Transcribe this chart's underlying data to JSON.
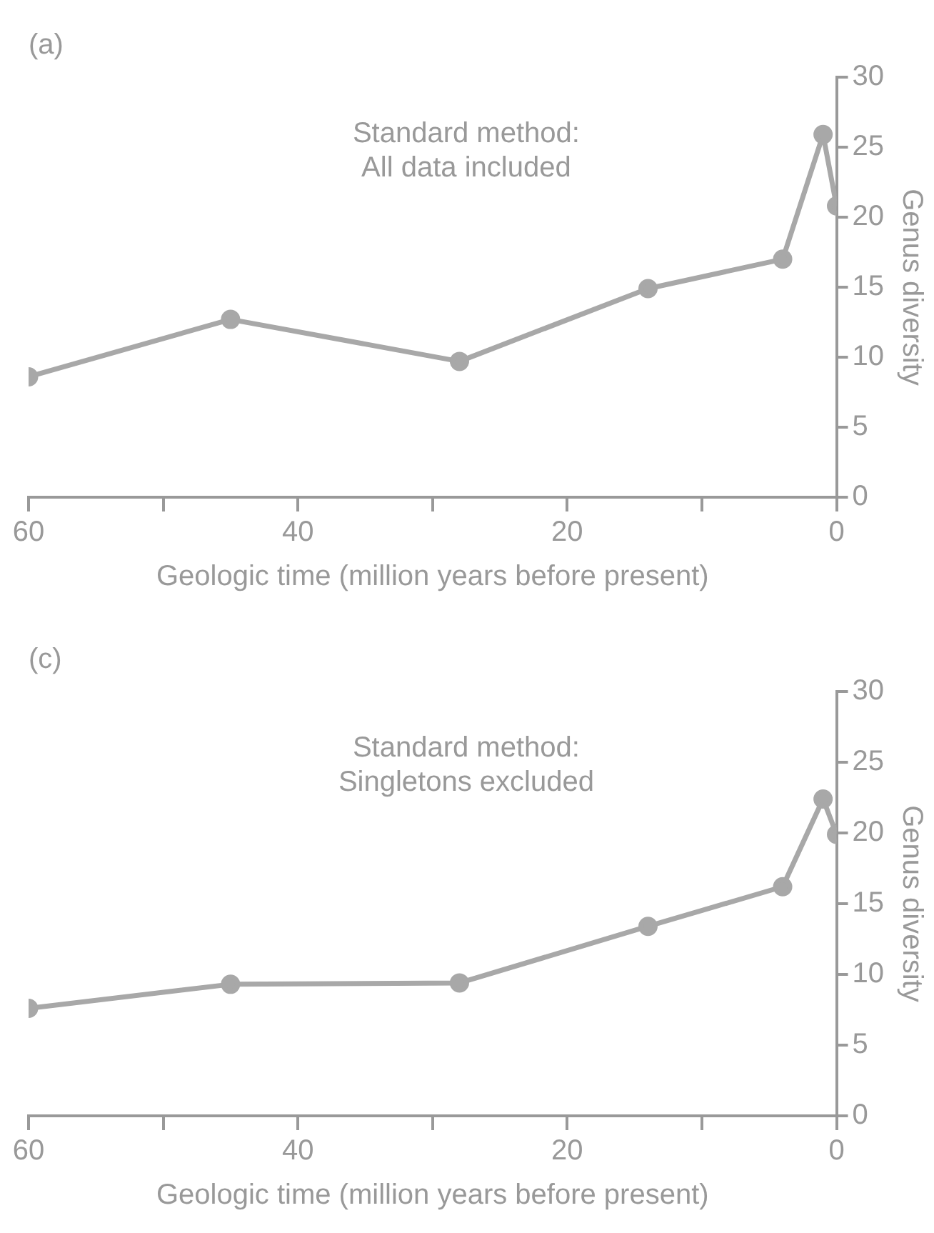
{
  "chart_data": [
    {
      "type": "line",
      "title": "(a)",
      "annotations": [
        "Standard method:\nAll data included"
      ],
      "xlabel": "Geologic time (million years before present)",
      "ylabel": "Genus diversity",
      "x": [
        60,
        45,
        28,
        14,
        4,
        1,
        0
      ],
      "series": [
        {
          "color": "#a8a8a8",
          "values": [
            8.6,
            12.7,
            9.7,
            14.9,
            17.0,
            25.9,
            20.8
          ]
        }
      ],
      "xlim": [
        60,
        0
      ],
      "xticks": [
        60,
        {
          "value": 50,
          "label": null
        },
        40,
        {
          "value": 30,
          "label": null
        },
        20,
        {
          "value": 10,
          "label": null
        },
        0
      ],
      "ylim": [
        0,
        30
      ],
      "yticks": [
        0,
        5,
        10,
        15,
        20,
        25,
        30
      ],
      "marker": "circle",
      "grid": false,
      "legend": false
    },
    {
      "type": "line",
      "title": "(c)",
      "annotations": [
        "Standard method:\nSingletons excluded"
      ],
      "xlabel": "Geologic time (million years before present)",
      "ylabel": "Genus diversity",
      "x": [
        60,
        45,
        28,
        14,
        4,
        1,
        0
      ],
      "series": [
        {
          "color": "#a8a8a8",
          "values": [
            7.6,
            9.3,
            9.4,
            13.4,
            16.2,
            22.4,
            19.9
          ]
        }
      ],
      "xlim": [
        60,
        0
      ],
      "xticks": [
        60,
        {
          "value": 50,
          "label": null
        },
        40,
        {
          "value": 30,
          "label": null
        },
        20,
        {
          "value": 10,
          "label": null
        },
        0
      ],
      "ylim": [
        0,
        30
      ],
      "yticks": [
        0,
        5,
        10,
        15,
        20,
        25,
        30
      ],
      "marker": "circle",
      "grid": false,
      "legend": false
    }
  ]
}
